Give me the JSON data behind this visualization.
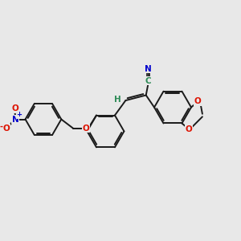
{
  "bg_color": "#e8e8e8",
  "bond_color": "#1a1a1a",
  "bond_width": 1.4,
  "atom_colors": {
    "C_green": "#2e8b57",
    "N_blue": "#0000cc",
    "O_red": "#dd1100",
    "H_green": "#2e8b57"
  },
  "fig_size": [
    3.0,
    3.0
  ],
  "dpi": 100,
  "xlim": [
    0,
    10
  ],
  "ylim": [
    0,
    10
  ]
}
